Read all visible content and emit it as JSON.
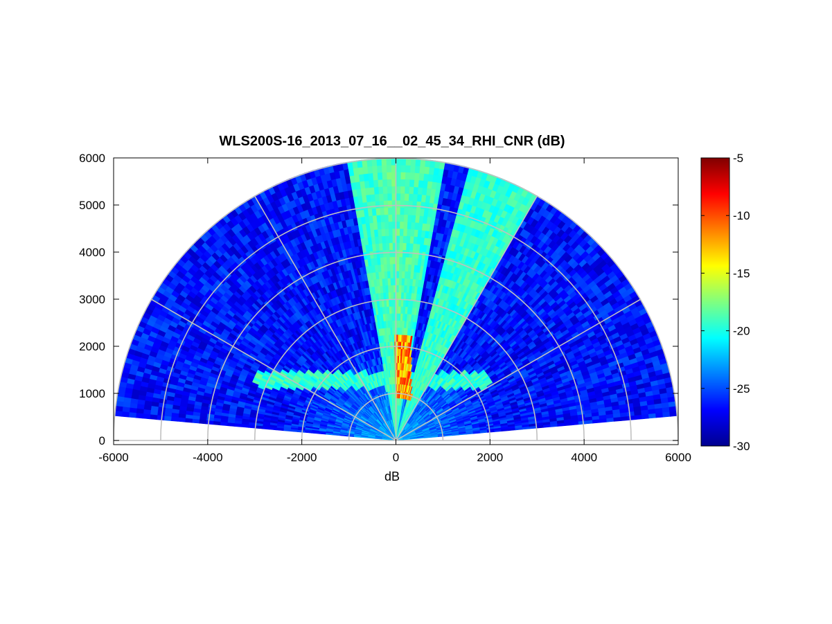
{
  "chart_data": {
    "type": "heatmap",
    "subtype": "polar-rhi",
    "title": "WLS200S-16_2013_07_16__02_45_34_RHI_CNR (dB)",
    "xlabel": "dB",
    "ylabel": "",
    "xlim": [
      -6000,
      6000
    ],
    "ylim": [
      0,
      6000
    ],
    "x_ticks": [
      "-6000",
      "-4000",
      "-2000",
      "0",
      "2000",
      "4000",
      "6000"
    ],
    "y_ticks": [
      "0",
      "1000",
      "2000",
      "3000",
      "4000",
      "5000",
      "6000"
    ],
    "polar_grid": {
      "range_rings": [
        1000,
        2000,
        3000,
        4000,
        5000,
        6000
      ],
      "spokes_deg": [
        0,
        30,
        60,
        90,
        120,
        150,
        180
      ]
    },
    "scan_elevation_range_deg": [
      5,
      175
    ],
    "max_range": 6000,
    "colorbar": {
      "colormap": "jet",
      "clim": [
        -30,
        -5
      ],
      "ticks": [
        "-5",
        "-10",
        "-15",
        "-20",
        "-25",
        "-30"
      ]
    },
    "features": [
      {
        "description": "background noise",
        "elevation_deg": [
          5,
          175
        ],
        "range": [
          0,
          6000
        ],
        "value_db": -26
      },
      {
        "description": "near-vertical beam core",
        "elevation_deg": [
          80,
          100
        ],
        "range": [
          300,
          6000
        ],
        "value_db": -18
      },
      {
        "description": "inclined beam",
        "elevation_deg": [
          60,
          75
        ],
        "range": [
          300,
          6000
        ],
        "value_db": -19
      },
      {
        "description": "low cloud/aerosol layer",
        "altitude": [
          1100,
          1400
        ],
        "x": [
          -3000,
          2000
        ],
        "value_db": -19
      },
      {
        "description": "strong return near zenith",
        "x": [
          0,
          300
        ],
        "altitude": [
          1000,
          2200
        ],
        "value_db": -9
      }
    ],
    "grid": true,
    "legend": "none"
  }
}
